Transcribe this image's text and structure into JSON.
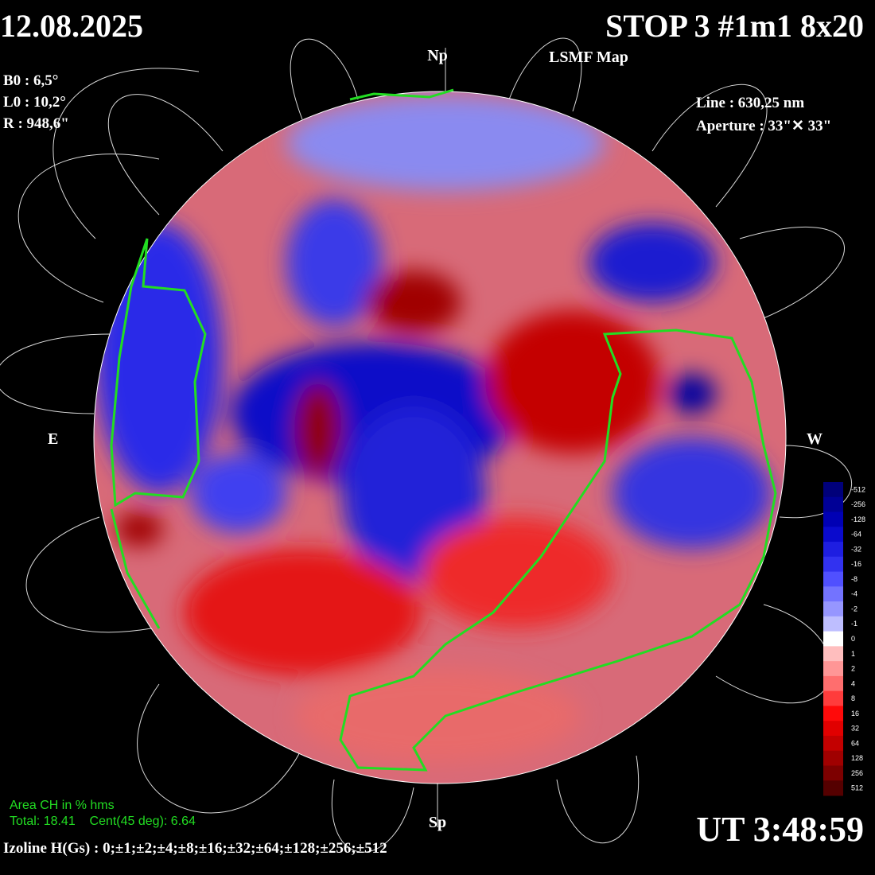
{
  "header": {
    "date": "12.08.2025",
    "title": "STOP 3 #1m1 8x20",
    "subtitle": "LSMF  Map"
  },
  "params_left": [
    "B0 : 6,5°",
    "L0 : 10,2°",
    "R  : 948,6\""
  ],
  "params_right": [
    "Line :  630,25 nm",
    "Aperture : 33\"✕ 33\""
  ],
  "directions": {
    "north": "Np",
    "south": "Sp",
    "east": "E",
    "west": "W"
  },
  "area": {
    "title": "Area CH in % hms",
    "values": "Total: 18.41    Cent(45 deg): 6.64"
  },
  "time": "UT 3:48:59",
  "izoline": "Izoline H(Gs) : 0;±1;±2;±4;±8;±16;±32;±64;±128;±256;±512",
  "colorbar": {
    "levels": [
      -512,
      -256,
      -128,
      -64,
      -32,
      -16,
      -8,
      -4,
      -2,
      -1,
      0,
      1,
      2,
      4,
      8,
      16,
      32,
      64,
      128,
      256,
      512
    ],
    "colors": [
      "#00007a",
      "#000096",
      "#0000b4",
      "#0a0acd",
      "#1e1ee1",
      "#3232f0",
      "#5050ff",
      "#7373ff",
      "#9696ff",
      "#bebeff",
      "#ffffff",
      "#ffbebe",
      "#ff9696",
      "#ff6e6e",
      "#ff3c3c",
      "#ff0a0a",
      "#e10000",
      "#c30000",
      "#a00000",
      "#7d0000",
      "#550000"
    ]
  }
}
